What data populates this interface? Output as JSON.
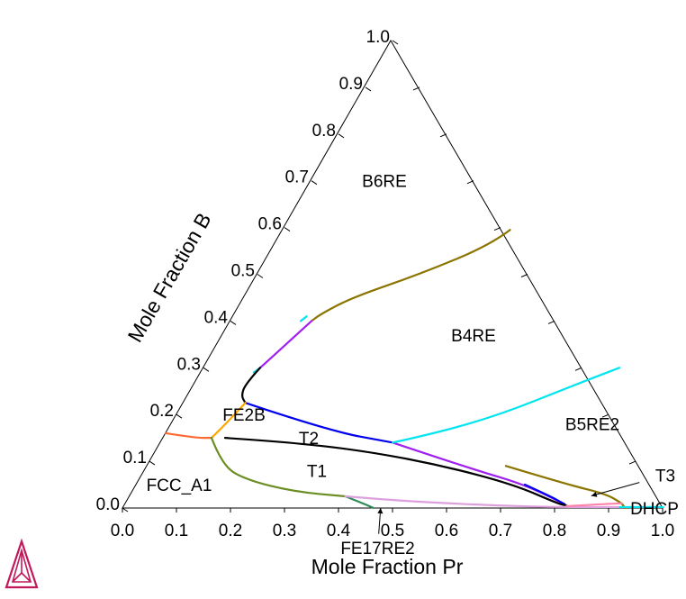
{
  "chart_data": {
    "type": "ternary",
    "bottom_axis": {
      "label": "Mole Fraction Pr",
      "ticks": [
        "0.0",
        "0.1",
        "0.2",
        "0.3",
        "0.4",
        "0.5",
        "0.6",
        "0.7",
        "0.8",
        "0.9",
        "1.0"
      ]
    },
    "left_axis": {
      "label": "Mole Fraction B",
      "ticks": [
        "0.0",
        "0.1",
        "0.2",
        "0.3",
        "0.4",
        "0.5",
        "0.6",
        "0.7",
        "0.8",
        "0.9",
        "1.0"
      ]
    },
    "regions": [
      {
        "label": "B6RE",
        "at": {
          "pr": 0.135,
          "b": 0.7
        }
      },
      {
        "label": "B4RE",
        "at": {
          "pr": 0.465,
          "b": 0.37
        }
      },
      {
        "label": "B5RE2",
        "at": {
          "pr": 0.78,
          "b": 0.18
        }
      },
      {
        "label": "FE2B",
        "at": {
          "pr": 0.125,
          "b": 0.2
        }
      },
      {
        "label": "T2",
        "at": {
          "pr": 0.27,
          "b": 0.15
        }
      },
      {
        "label": "T1",
        "at": {
          "pr": 0.32,
          "b": 0.08
        }
      },
      {
        "label": "FCC_A1",
        "at": {
          "pr": 0.08,
          "b": 0.05
        }
      },
      {
        "label": "DHCP",
        "at": {
          "pr": 0.985,
          "b": 0.0
        }
      }
    ],
    "arrow_labels": [
      {
        "label": "T3",
        "text_at": {
          "pr": 0.97,
          "b": 0.07
        },
        "tip": {
          "pr": 0.855,
          "b": 0.026
        }
      },
      {
        "label": "FE17RE2",
        "text_at": {
          "pr": 0.515,
          "b": -0.085
        },
        "tip": {
          "pr": 0.478,
          "b": 0.0
        }
      }
    ],
    "boundaries": [
      {
        "color": "#8B7500",
        "points": [
          [
            0.42,
            0.595
          ],
          [
            0.4,
            0.563
          ],
          [
            0.3,
            0.5
          ],
          [
            0.2,
            0.45
          ],
          [
            0.16,
            0.415
          ],
          [
            0.15,
            0.4
          ]
        ]
      },
      {
        "color": "#00E5EE",
        "points": [
          [
            0.136,
            0.41
          ],
          [
            0.13,
            0.4
          ]
        ]
      },
      {
        "color": "#A020F0",
        "points": [
          [
            0.15,
            0.4
          ],
          [
            0.13,
            0.355
          ],
          [
            0.105,
            0.3
          ]
        ]
      },
      {
        "color": "#00E5EE",
        "points": [
          [
            0.105,
            0.3
          ],
          [
            0.098,
            0.29
          ]
        ]
      },
      {
        "color": "#000000",
        "points": [
          [
            0.105,
            0.3
          ],
          [
            0.095,
            0.265
          ],
          [
            0.1,
            0.24
          ],
          [
            0.115,
            0.225
          ]
        ]
      },
      {
        "color": "#0000EE",
        "points": [
          [
            0.115,
            0.225
          ],
          [
            0.3,
            0.165
          ],
          [
            0.43,
            0.14
          ]
        ]
      },
      {
        "color": "#A020F0",
        "points": [
          [
            0.43,
            0.14
          ],
          [
            0.6,
            0.085
          ],
          [
            0.72,
            0.05
          ],
          [
            0.815,
            0.008
          ]
        ]
      },
      {
        "color": "#0000EE",
        "points": [
          [
            0.72,
            0.05
          ],
          [
            0.78,
            0.025
          ],
          [
            0.815,
            0.008
          ]
        ]
      },
      {
        "color": "#00E5EE",
        "points": [
          [
            0.43,
            0.14
          ],
          [
            0.5,
            0.16
          ],
          [
            0.6,
            0.2
          ],
          [
            0.7,
            0.26
          ],
          [
            0.77,
            0.3
          ]
        ]
      },
      {
        "color": "#8B7500",
        "points": [
          [
            0.665,
            0.09
          ],
          [
            0.8,
            0.05
          ],
          [
            0.88,
            0.03
          ],
          [
            0.92,
            0.01
          ],
          [
            0.93,
            0.0
          ]
        ]
      },
      {
        "color": "#000000",
        "points": [
          [
            0.115,
            0.15
          ],
          [
            0.25,
            0.14
          ],
          [
            0.4,
            0.12
          ],
          [
            0.55,
            0.09
          ],
          [
            0.7,
            0.05
          ],
          [
            0.8,
            0.01
          ],
          [
            0.82,
            0.005
          ]
        ]
      },
      {
        "color": "#FFA500",
        "points": [
          [
            0.115,
            0.225
          ],
          [
            0.103,
            0.185
          ],
          [
            0.09,
            0.15
          ]
        ]
      },
      {
        "color": "#FF6A33",
        "points": [
          [
            0.0,
            0.16
          ],
          [
            0.06,
            0.15
          ],
          [
            0.09,
            0.15
          ]
        ]
      },
      {
        "color": "#6B8E23",
        "points": [
          [
            0.09,
            0.15
          ],
          [
            0.14,
            0.09
          ],
          [
            0.2,
            0.06
          ],
          [
            0.3,
            0.035
          ],
          [
            0.4,
            0.025
          ]
        ]
      },
      {
        "color": "#2E8B57",
        "points": [
          [
            0.4,
            0.025
          ],
          [
            0.44,
            0.01
          ],
          [
            0.465,
            0.0
          ]
        ]
      },
      {
        "color": "#DDA0DD",
        "points": [
          [
            0.4,
            0.025
          ],
          [
            0.5,
            0.016
          ],
          [
            0.6,
            0.01
          ],
          [
            0.7,
            0.005
          ],
          [
            0.8,
            0.002
          ],
          [
            0.92,
            0.002
          ]
        ]
      },
      {
        "color": "#FF82AB",
        "points": [
          [
            0.82,
            0.004
          ],
          [
            0.88,
            0.008
          ],
          [
            0.92,
            0.01
          ]
        ]
      },
      {
        "color": "#00E5EE",
        "points": [
          [
            0.92,
            0.002
          ],
          [
            1.0,
            0.002
          ]
        ]
      }
    ],
    "grid": false,
    "legend": "none"
  },
  "logo": {
    "name": "thermo-calc-logo-icon",
    "color": "#C2185B"
  }
}
